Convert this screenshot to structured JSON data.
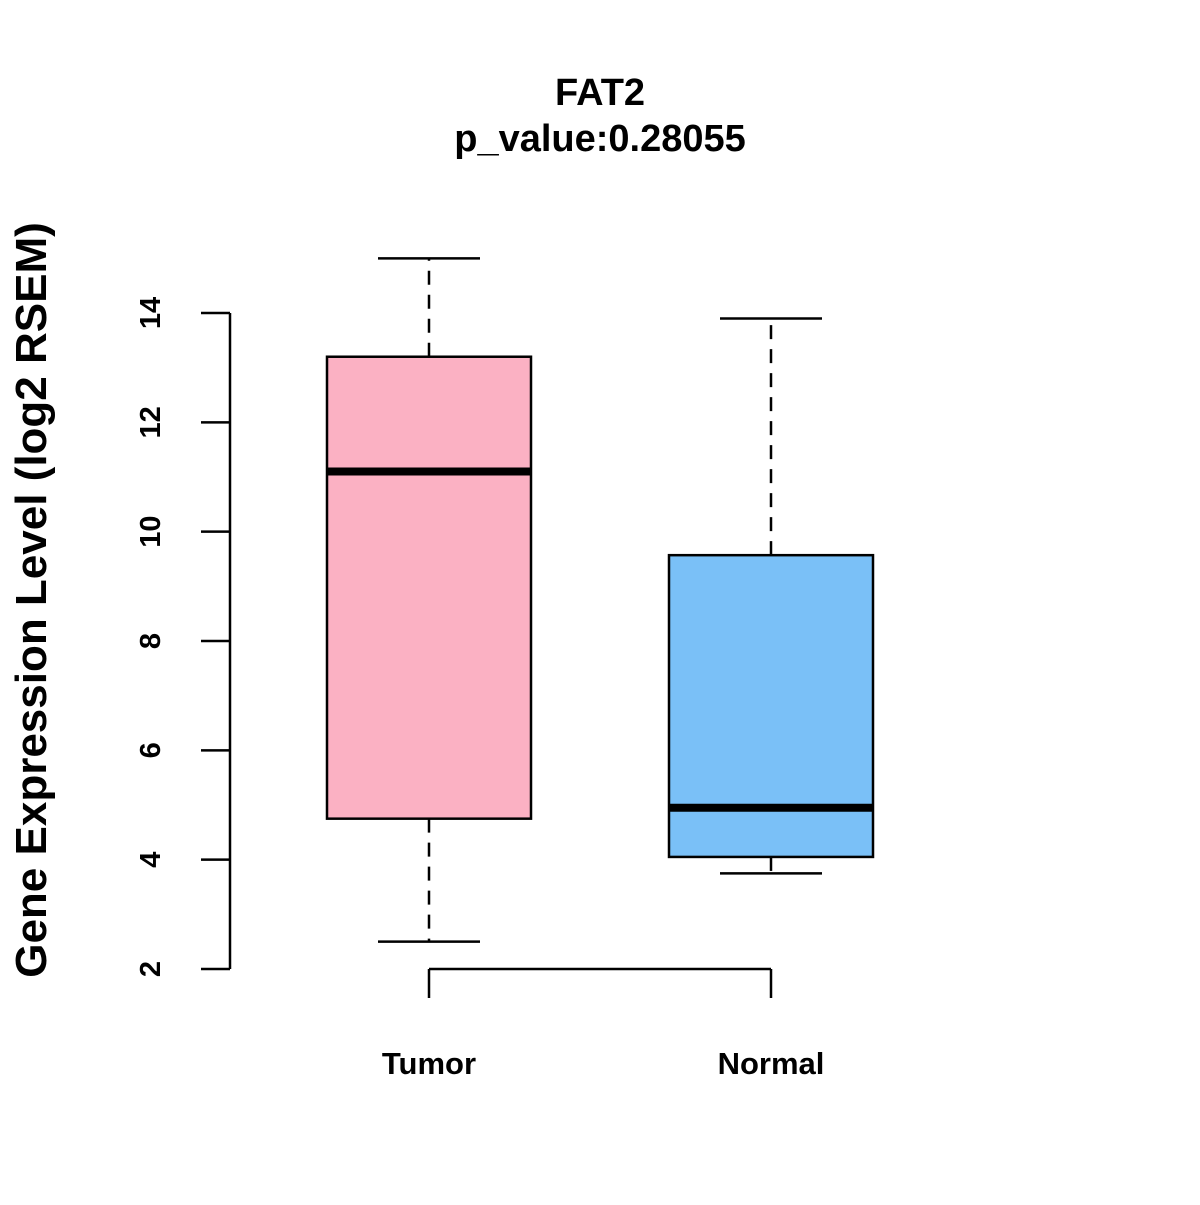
{
  "chart_data": {
    "type": "boxplot",
    "title": "FAT2",
    "subtitle": "p_value:0.28055",
    "xlabel": "",
    "ylabel": "Gene Expression Level (log2 RSEM)",
    "ylim": [
      2,
      14
    ],
    "yticks": [
      "2",
      "4",
      "6",
      "8",
      "10",
      "12",
      "14"
    ],
    "categories": [
      "Tumor",
      "Normal"
    ],
    "boxes": [
      {
        "category": "Tumor",
        "whisker_low": 2.5,
        "q1": 4.75,
        "median": 11.1,
        "q3": 13.2,
        "whisker_high": 15.0,
        "color": "#fbb1c3"
      },
      {
        "category": "Normal",
        "whisker_low": 3.75,
        "q1": 4.05,
        "median": 4.95,
        "q3": 9.57,
        "whisker_high": 13.9,
        "color": "#7ac0f7"
      }
    ],
    "grid": false,
    "legend": "none"
  }
}
